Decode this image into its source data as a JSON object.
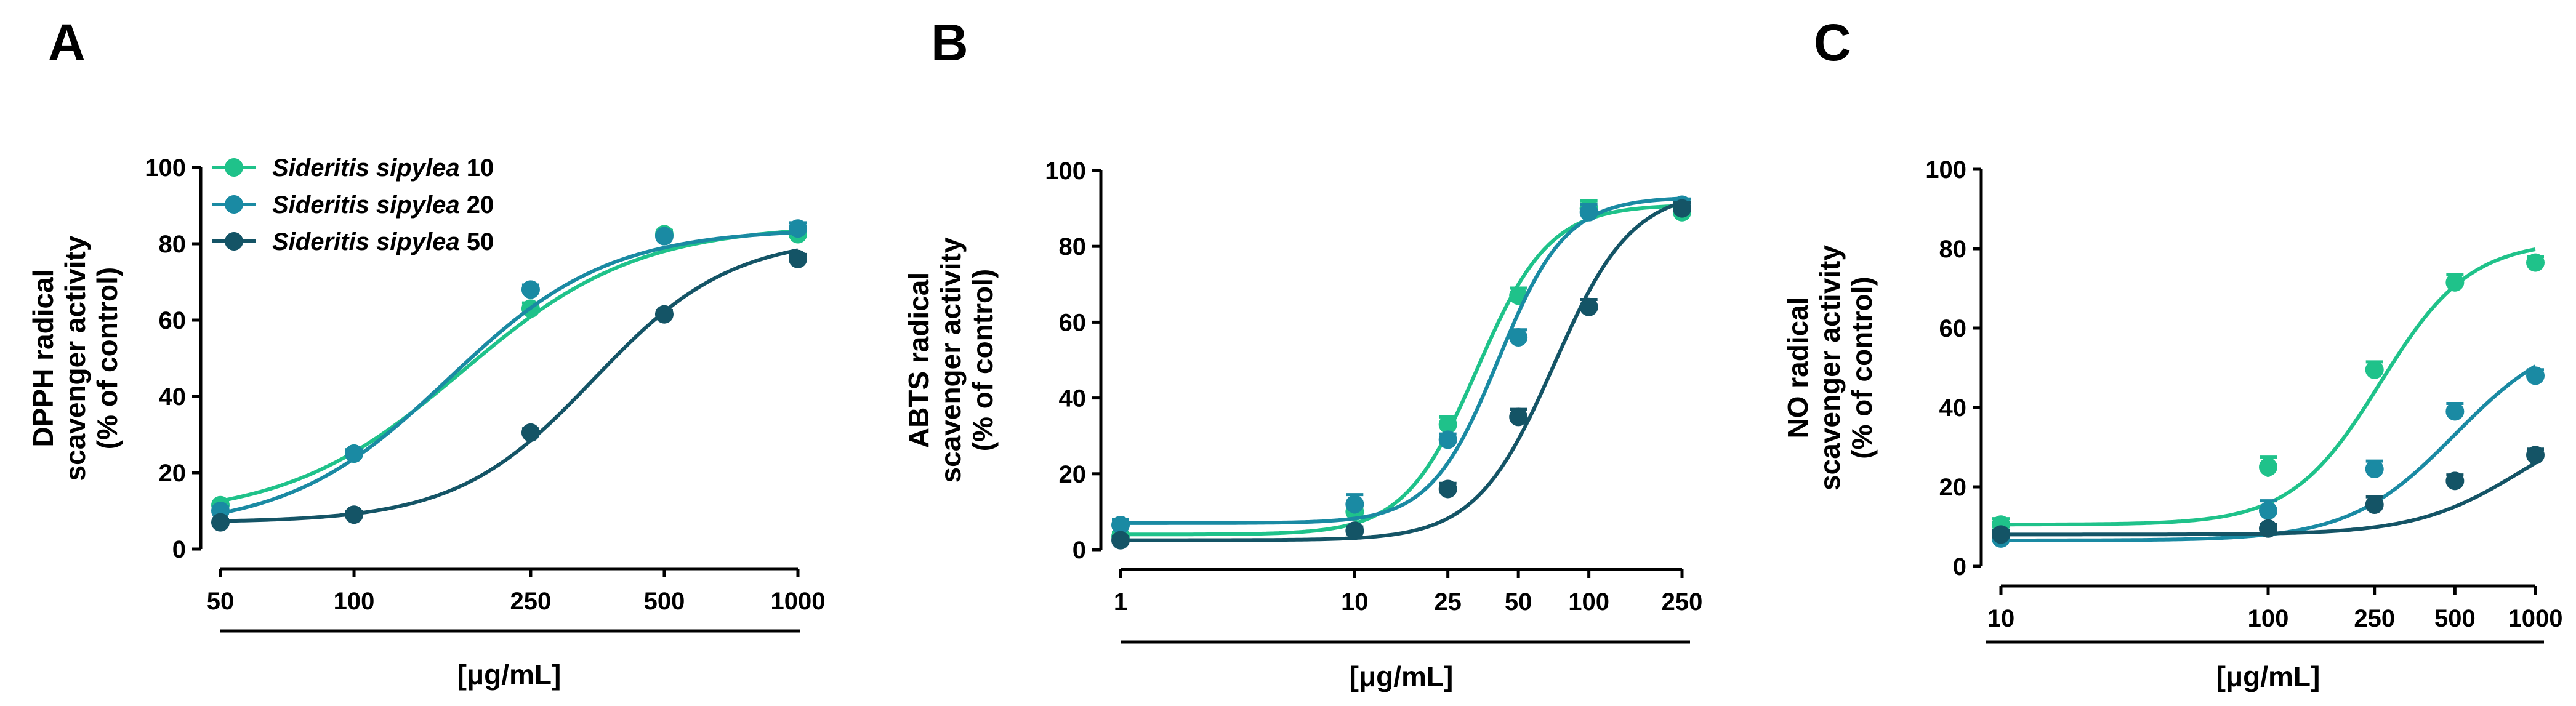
{
  "colors": {
    "s10": "#1fc28a",
    "s20": "#1a8aa3",
    "s50": "#145466",
    "axis": "#000000"
  },
  "legend": [
    {
      "species": "Sideritis sipylea",
      "dose": "10"
    },
    {
      "species": "Sideritis sipylea",
      "dose": "20"
    },
    {
      "species": "Sideritis sipylea",
      "dose": "50"
    }
  ],
  "chart_data": [
    {
      "type": "scatter",
      "panel": "A",
      "title": "",
      "xlabel": "[μg/mL]",
      "ylabel": [
        "DPPH radical",
        "scavenger activity",
        "(% of control)"
      ],
      "xscale": "log",
      "xlim": [
        50,
        1000
      ],
      "ylim": [
        0,
        100
      ],
      "x_ticks": [
        50,
        100,
        250,
        500,
        1000
      ],
      "x_tick_labels": [
        "50",
        "100",
        "250",
        "500",
        "1000"
      ],
      "y_ticks": [
        0,
        20,
        40,
        60,
        80,
        100
      ],
      "y_tick_labels": [
        "0",
        "20",
        "40",
        "60",
        "80",
        "100"
      ],
      "legend_position": "top-left",
      "series": [
        {
          "name": "Sideritis sipylea 10",
          "x": [
            50,
            100,
            250,
            500,
            1000
          ],
          "y": [
            11.5,
            25,
            63,
            82.5,
            82.5
          ],
          "err": [
            1,
            1,
            1.5,
            1,
            1.2
          ],
          "fit": {
            "bottom": 8,
            "top": 85,
            "logec50": 2.243,
            "hill": 2.2
          }
        },
        {
          "name": "Sideritis sipylea 20",
          "x": [
            50,
            100,
            250,
            500,
            1000
          ],
          "y": [
            10,
            25,
            68,
            82,
            84
          ],
          "err": [
            1,
            1,
            1.2,
            1,
            1.5
          ],
          "fit": {
            "bottom": 5,
            "top": 84,
            "logec50": 2.212,
            "hill": 2.4
          }
        },
        {
          "name": "Sideritis sipylea 50",
          "x": [
            50,
            100,
            250,
            500,
            1000
          ],
          "y": [
            7,
            9,
            30.5,
            61.5,
            76
          ],
          "err": [
            0.8,
            0.8,
            1,
            1,
            1.2
          ],
          "fit": {
            "bottom": 7,
            "top": 82,
            "logec50": 2.54,
            "hill": 2.8
          }
        }
      ]
    },
    {
      "type": "scatter",
      "panel": "B",
      "title": "",
      "xlabel": "[μg/mL]",
      "ylabel": [
        "ABTS radical",
        "scavenger activity",
        "(% of control)"
      ],
      "xscale": "log",
      "xlim": [
        1,
        250
      ],
      "ylim": [
        0,
        100
      ],
      "x_ticks": [
        1,
        10,
        25,
        50,
        100,
        250
      ],
      "x_tick_labels": [
        "1",
        "10",
        "25",
        "50",
        "100",
        "250"
      ],
      "y_ticks": [
        0,
        20,
        40,
        60,
        80,
        100
      ],
      "y_tick_labels": [
        "0",
        "20",
        "40",
        "60",
        "80",
        "100"
      ],
      "series": [
        {
          "name": "Sideritis sipylea 10",
          "x": [
            1,
            10,
            25,
            50,
            100,
            250
          ],
          "y": [
            3.5,
            10,
            33,
            67,
            90,
            89
          ],
          "err": [
            1,
            1.5,
            2,
            2,
            2,
            1.5
          ],
          "fit": {
            "bottom": 4,
            "top": 91,
            "logec50": 1.522,
            "hill": 2.8
          }
        },
        {
          "name": "Sideritis sipylea 20",
          "x": [
            1,
            10,
            25,
            50,
            100,
            250
          ],
          "y": [
            6.5,
            12,
            29,
            56,
            89,
            91
          ],
          "err": [
            1.5,
            2.5,
            1.5,
            2,
            2,
            1.5
          ],
          "fit": {
            "bottom": 7,
            "top": 93,
            "logec50": 1.613,
            "hill": 3.0
          }
        },
        {
          "name": "Sideritis sipylea 50",
          "x": [
            1,
            10,
            25,
            50,
            100,
            250
          ],
          "y": [
            2.5,
            5,
            16,
            35,
            64,
            90
          ],
          "err": [
            1,
            1,
            1.5,
            2,
            2,
            1.5
          ],
          "fit": {
            "bottom": 2.5,
            "top": 95,
            "logec50": 1.851,
            "hill": 2.6
          }
        }
      ]
    },
    {
      "type": "scatter",
      "panel": "C",
      "title": "",
      "xlabel": "[μg/mL]",
      "ylabel": [
        "NO radical",
        "scavenger activity",
        "(% of control)"
      ],
      "xscale": "log",
      "xlim": [
        10,
        1000
      ],
      "ylim": [
        0,
        100
      ],
      "x_ticks": [
        10,
        100,
        250,
        500,
        1000
      ],
      "x_tick_labels": [
        "10",
        "100",
        "250",
        "500",
        "1000"
      ],
      "y_ticks": [
        0,
        20,
        40,
        60,
        80,
        100
      ],
      "y_tick_labels": [
        "0",
        "20",
        "40",
        "60",
        "80",
        "100"
      ],
      "series": [
        {
          "name": "Sideritis sipylea 10",
          "x": [
            10,
            100,
            250,
            500,
            1000
          ],
          "y": [
            10.5,
            25,
            49.5,
            71.5,
            76.5
          ],
          "err": [
            1.5,
            2.5,
            2,
            2,
            1.5
          ],
          "fit": {
            "bottom": 10.5,
            "top": 82,
            "logec50": 2.42,
            "hill": 2.6
          }
        },
        {
          "name": "Sideritis sipylea 20",
          "x": [
            10,
            100,
            250,
            500,
            1000
          ],
          "y": [
            7,
            14,
            24.5,
            39,
            48
          ],
          "err": [
            1,
            2.5,
            2,
            2,
            1.5
          ],
          "fit": {
            "bottom": 6.5,
            "top": 60,
            "logec50": 2.7,
            "hill": 2.2
          }
        },
        {
          "name": "Sideritis sipylea 50",
          "x": [
            10,
            100,
            250,
            500,
            1000
          ],
          "y": [
            8,
            9.5,
            15.5,
            21.5,
            28
          ],
          "err": [
            1,
            1,
            2,
            1.5,
            1.5
          ],
          "fit": {
            "bottom": 8,
            "top": 40,
            "logec50": 2.95,
            "hill": 2.2
          }
        }
      ]
    }
  ]
}
